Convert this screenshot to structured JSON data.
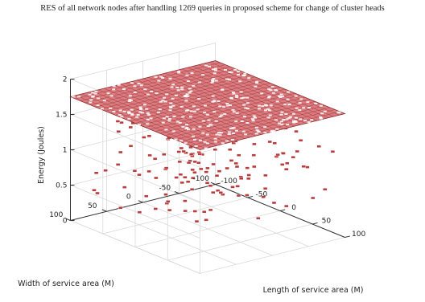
{
  "chart_data": {
    "type": "surface",
    "title": "RES of all network nodes after handling 1269 queries in proposed scheme for change of cluster heads",
    "zlabel": "Energy (Joules)",
    "xlabel": "Length of service area (M)",
    "ylabel": "Width of service area (M)",
    "x_ticks": [
      "-100",
      "-50",
      "0",
      "50",
      "100"
    ],
    "y_ticks": [
      "100",
      "50",
      "0",
      "-50",
      "-100"
    ],
    "z_ticks": [
      "0",
      "0.5",
      "1",
      "1.5",
      "2"
    ],
    "xlim": [
      -100,
      100
    ],
    "ylim": [
      -100,
      100
    ],
    "zlim": [
      0,
      2
    ],
    "surface_level": 1.75,
    "grid": true,
    "colors": {
      "surface_fill": "#dc7c80",
      "surface_line": "#8c2a2a",
      "node_marker": "#b83c3c",
      "node_highlight": "#ffffff",
      "axis": "#333333",
      "grid": "#d9d9d9"
    }
  }
}
